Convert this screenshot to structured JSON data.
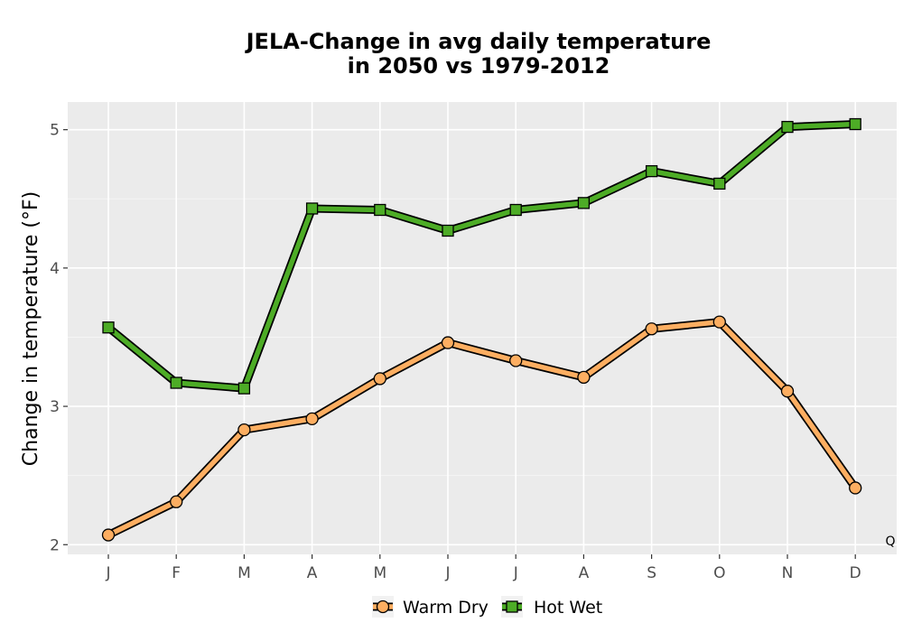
{
  "chart_data": {
    "type": "line",
    "title_line1": "JELA-Change in avg daily temperature",
    "title_line2": "in 2050 vs 1979-2012",
    "xlabel": "",
    "ylabel": "Change in temperature (°F)",
    "categories": [
      "J",
      "F",
      "M",
      "A",
      "M",
      "J",
      "J",
      "A",
      "S",
      "O",
      "N",
      "D"
    ],
    "ylim": [
      1.93,
      5.2
    ],
    "yticks": [
      2,
      3,
      4,
      5
    ],
    "yticks_labels": [
      "2",
      "3",
      "4",
      "5"
    ],
    "grid": true,
    "legend_position": "bottom",
    "corner_mark": "Q",
    "series": [
      {
        "name": "Warm Dry",
        "marker": "circle",
        "color": "#FDAE61",
        "values": [
          2.07,
          2.31,
          2.83,
          2.91,
          3.2,
          3.46,
          3.33,
          3.21,
          3.56,
          3.61,
          3.11,
          2.41
        ]
      },
      {
        "name": "Hot Wet",
        "marker": "square",
        "color": "#4DAC26",
        "values": [
          3.57,
          3.17,
          3.13,
          4.43,
          4.42,
          4.27,
          4.42,
          4.47,
          4.7,
          4.61,
          5.02,
          5.04
        ]
      }
    ]
  }
}
